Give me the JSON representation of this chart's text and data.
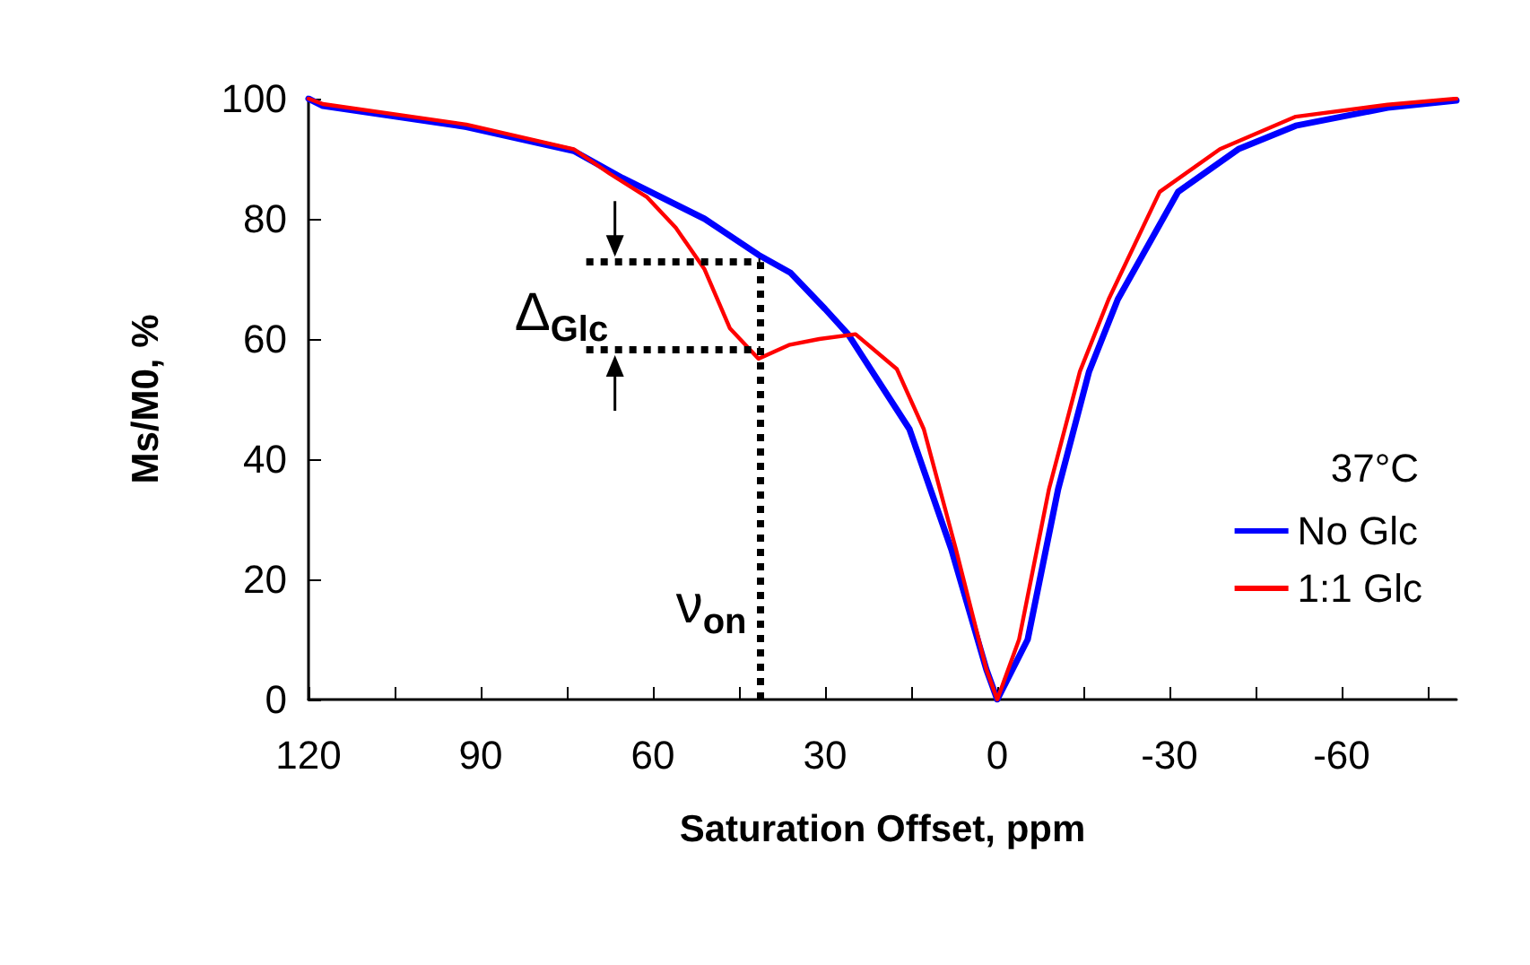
{
  "chart_data": {
    "type": "line",
    "xlabel": "Saturation Offset, ppm",
    "ylabel": "Ms/M0, %",
    "legend_title": "37°C",
    "xlim": [
      120,
      -80
    ],
    "xticks": [
      120,
      {
        "value": 105,
        "label": null
      },
      90,
      {
        "value": 75,
        "label": null
      },
      60,
      {
        "value": 45,
        "label": null
      },
      30,
      {
        "value": 15,
        "label": null
      },
      0,
      {
        "value": -15,
        "label": null
      },
      -30,
      {
        "value": -45,
        "label": null
      },
      -60,
      {
        "value": -75,
        "label": null
      }
    ],
    "ylim": [
      0,
      100
    ],
    "yticks": [
      0,
      20,
      40,
      60,
      80,
      100
    ],
    "grid": false,
    "legend": "right",
    "marker": "none",
    "line_style": "solid",
    "series": [
      {
        "name": "No Glc",
        "color": "#0000ff",
        "x": [
          120,
          117.5,
          92.5,
          73.8,
          65.3,
          51,
          41.6,
          36,
          30,
          26,
          15.3,
          8,
          1.9,
          0,
          -5.3,
          -10.6,
          -16,
          -21,
          -31.5,
          -42,
          -52,
          -68,
          -80
        ],
        "values": [
          100,
          98.8,
          95.3,
          91.3,
          86.8,
          80,
          74,
          71,
          65,
          60.8,
          45,
          25,
          5,
          0,
          10,
          35,
          54.6,
          66.6,
          84.5,
          91.6,
          95.5,
          98.5,
          99.7
        ]
      },
      {
        "name": "1:1 Glc",
        "color": "#ff0000",
        "x": [
          120,
          117.5,
          92.5,
          73.8,
          67.5,
          61,
          56,
          51,
          46.6,
          41.6,
          36.3,
          31,
          24.7,
          17.5,
          12.8,
          7.2,
          1.9,
          0,
          -3.8,
          -9,
          -14.4,
          -19.4,
          -28.3,
          -38.8,
          -52,
          -68,
          -80
        ],
        "values": [
          100,
          99.1,
          95.7,
          91.6,
          87.5,
          83.6,
          78.5,
          71.6,
          61.8,
          56.7,
          59,
          60,
          60.8,
          55,
          45,
          25,
          5,
          0,
          10,
          35,
          54.6,
          66.6,
          84.5,
          91.6,
          97,
          99,
          100
        ]
      }
    ],
    "ref_lines": [
      {
        "axis": "y",
        "value": 72.8,
        "label": null,
        "color": "#000000",
        "line_style": "dotted"
      },
      {
        "axis": "y",
        "value": 58.2,
        "label": null,
        "color": "#000000",
        "line_style": "dotted"
      },
      {
        "axis": "x",
        "value": 41.3,
        "label": null,
        "color": "#000000",
        "line_style": "dotted"
      }
    ],
    "annotations": [
      "Δ$_{Glc}$",
      {
        "text": "ν$_{on}$",
        "x": 41.3,
        "y": 15
      }
    ]
  }
}
